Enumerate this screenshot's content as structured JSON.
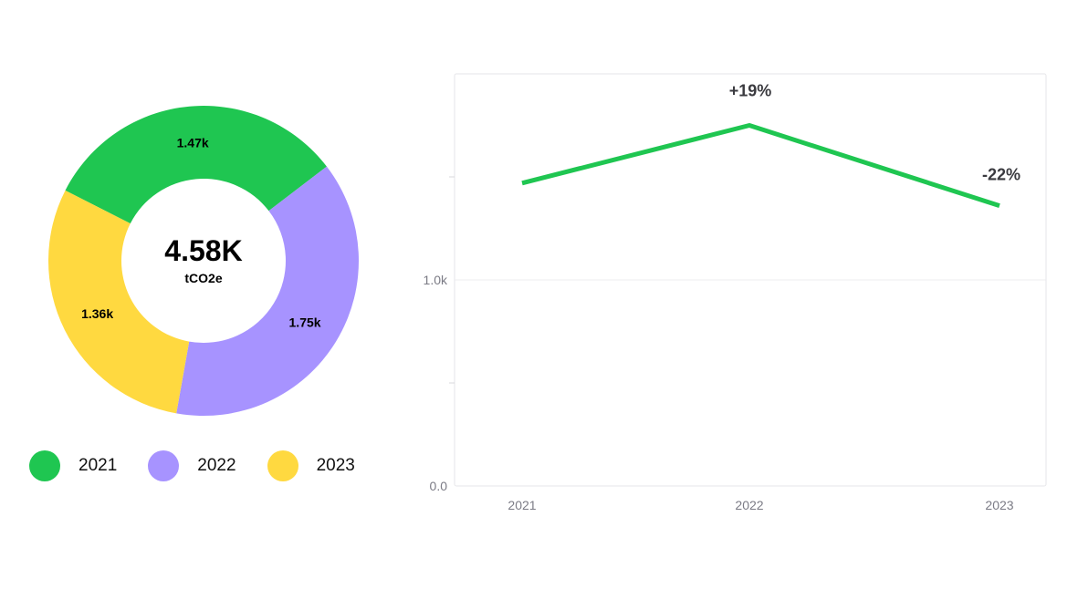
{
  "chart_data": [
    {
      "type": "pie",
      "variant": "donut",
      "center_value": "4.58K",
      "center_unit": "tCO2e",
      "categories": [
        "2021",
        "2022",
        "2023"
      ],
      "values": [
        1470,
        1750,
        1360
      ],
      "slice_labels": [
        "1.47k",
        "1.75k",
        "1.36k"
      ],
      "colors": [
        "#1FC651",
        "#A793FF",
        "#FFD940"
      ],
      "legend": {
        "placement": "bottom",
        "entries": [
          "2021",
          "2022",
          "2023"
        ]
      }
    },
    {
      "type": "line",
      "categories": [
        "2021",
        "2022",
        "2023"
      ],
      "series": [
        {
          "values": [
            1470,
            1750,
            1360
          ],
          "color": "#1FC651"
        }
      ],
      "annotations": [
        {
          "x": "2022",
          "text": "+19%"
        },
        {
          "x": "2023",
          "text": "-22%"
        }
      ],
      "yticks": [
        "0.0",
        "1.0k"
      ],
      "ylim": [
        0,
        2000
      ],
      "grid": true
    }
  ]
}
